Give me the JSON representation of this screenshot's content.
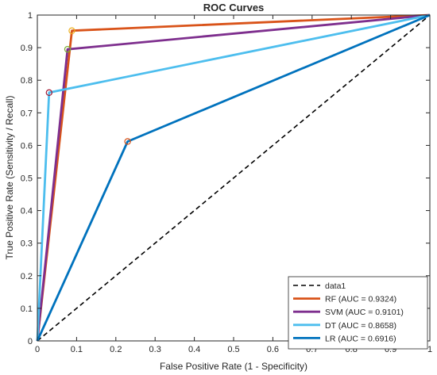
{
  "chart_data": {
    "type": "line",
    "title": "ROC Curves",
    "xlabel": "False Positive Rate (1 - Specificity)",
    "ylabel": "True Positive Rate (Sensitivity / Recall)",
    "xlim": [
      0,
      1
    ],
    "ylim": [
      0,
      1
    ],
    "xticks": [
      "0",
      "0.1",
      "0.2",
      "0.3",
      "0.4",
      "0.5",
      "0.6",
      "0.7",
      "0.8",
      "0.9",
      "1"
    ],
    "yticks": [
      "0",
      "0.1",
      "0.2",
      "0.3",
      "0.4",
      "0.5",
      "0.6",
      "0.7",
      "0.8",
      "0.9",
      "1"
    ],
    "grid": false,
    "legend_position": "bottom-right",
    "series": [
      {
        "name": "data1",
        "color": "#000000",
        "style": "dashed",
        "x": [
          0,
          1
        ],
        "y": [
          0,
          1
        ]
      },
      {
        "name": "RF (AUC = 0.9324)",
        "color": "#d95319",
        "style": "solid",
        "x": [
          0,
          0.088,
          1
        ],
        "y": [
          0,
          0.952,
          1
        ],
        "marker": [
          0.088,
          0.952
        ],
        "marker_color": "#edb120"
      },
      {
        "name": "SVM (AUC = 0.9101)",
        "color": "#7e2f8e",
        "style": "solid",
        "x": [
          0,
          0.077,
          1
        ],
        "y": [
          0,
          0.895,
          1
        ],
        "marker": [
          0.077,
          0.895
        ],
        "marker_color": "#77ac30"
      },
      {
        "name": "DT (AUC = 0.8658)",
        "color": "#4dbeee",
        "style": "solid",
        "x": [
          0,
          0.03,
          1
        ],
        "y": [
          0,
          0.762,
          1
        ],
        "marker": [
          0.03,
          0.762
        ],
        "marker_color": "#a2142f"
      },
      {
        "name": "LR (AUC = 0.6916)",
        "color": "#0072bd",
        "style": "solid",
        "x": [
          0,
          0.23,
          1
        ],
        "y": [
          0,
          0.612,
          1
        ],
        "marker": [
          0.23,
          0.612
        ],
        "marker_color": "#d95319"
      }
    ]
  }
}
